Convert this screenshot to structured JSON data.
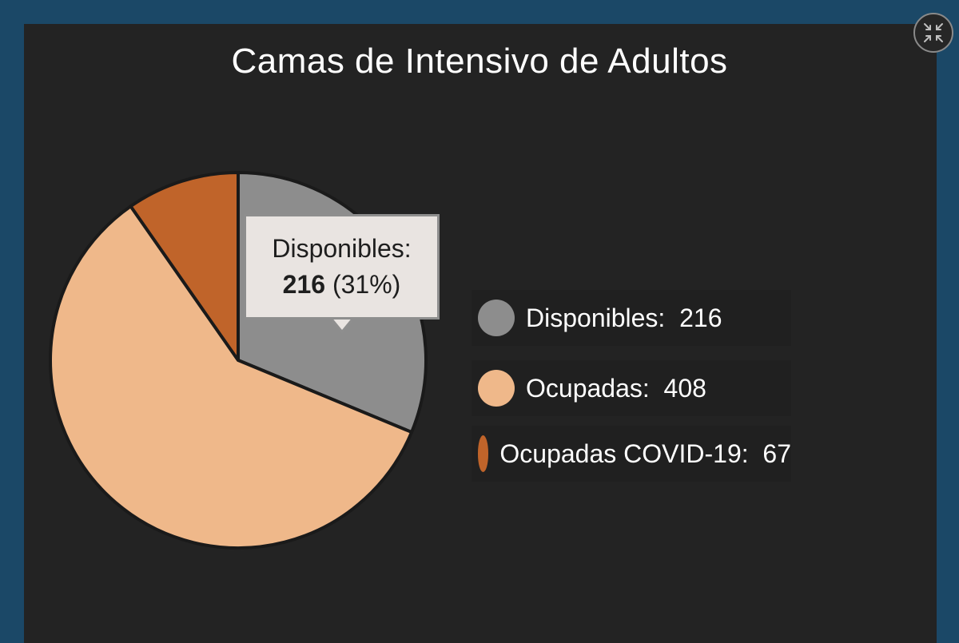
{
  "chart_data": {
    "type": "pie",
    "title": "Camas de Intensivo de Adultos",
    "categories": [
      "Disponibles",
      "Ocupadas",
      "Ocupadas COVID-19"
    ],
    "values": [
      216,
      408,
      67
    ],
    "colors": [
      "#8d8d8d",
      "#efb88a",
      "#c0642a"
    ],
    "legend_position": "right"
  },
  "legend": [
    {
      "label": "Disponibles:  216",
      "color": "#8d8d8d"
    },
    {
      "label": "Ocupadas:  408",
      "color": "#efb88a"
    },
    {
      "label": "Ocupadas COVID-19:  67",
      "color": "#c0642a"
    }
  ],
  "tooltip": {
    "label": "Disponibles:",
    "value": "216",
    "percent": "(31%)"
  },
  "controls": {
    "shrink_icon": "collapse-arrows-icon"
  },
  "colors": {
    "frame": "#1b4867",
    "panel": "#232323"
  }
}
